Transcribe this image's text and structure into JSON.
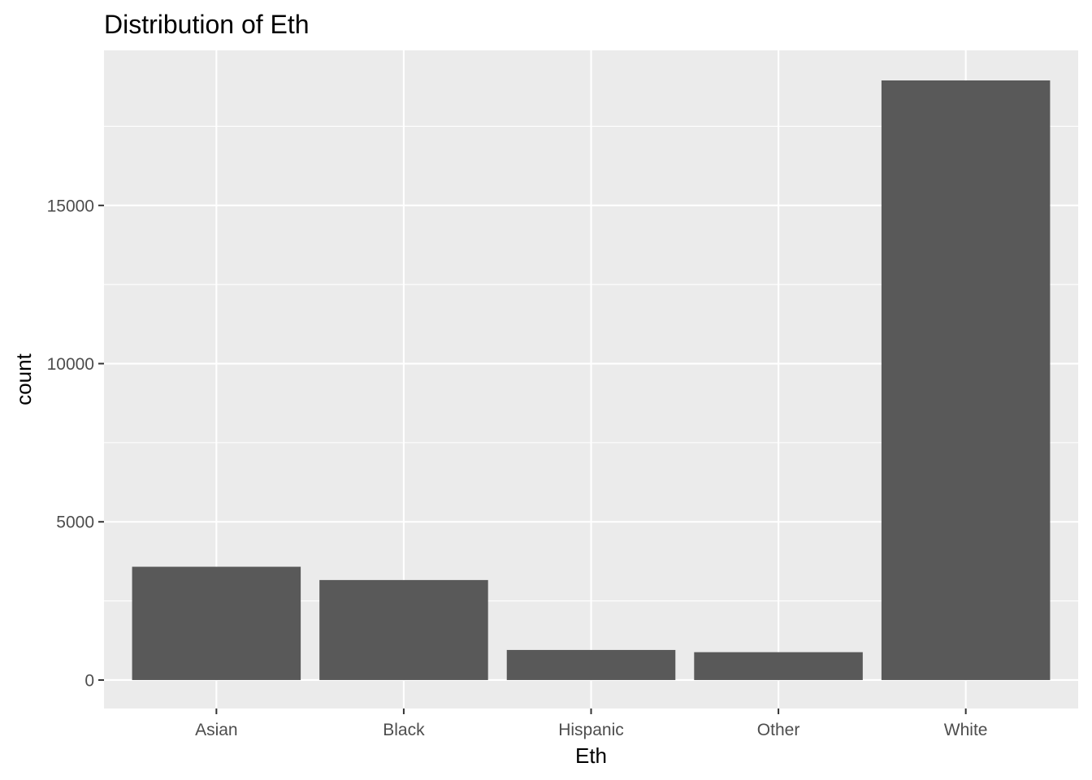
{
  "chart_data": {
    "type": "bar",
    "title": "Distribution of Eth",
    "xlabel": "Eth",
    "ylabel": "count",
    "categories": [
      "Asian",
      "Black",
      "Hispanic",
      "Other",
      "White"
    ],
    "values": [
      3580,
      3160,
      950,
      880,
      18950
    ],
    "ylim": [
      -900,
      19900
    ],
    "yticks": [
      0,
      5000,
      10000,
      15000
    ],
    "ytick_labels": [
      "0",
      "5000",
      "10000",
      "15000"
    ],
    "grid": true,
    "legend": "none",
    "colors": {
      "panel_background": "#EBEBEB",
      "grid_major": "#FFFFFF",
      "bar_fill": "#595959",
      "tick_text": "#4D4D4D",
      "tick_mark": "#333333"
    }
  }
}
